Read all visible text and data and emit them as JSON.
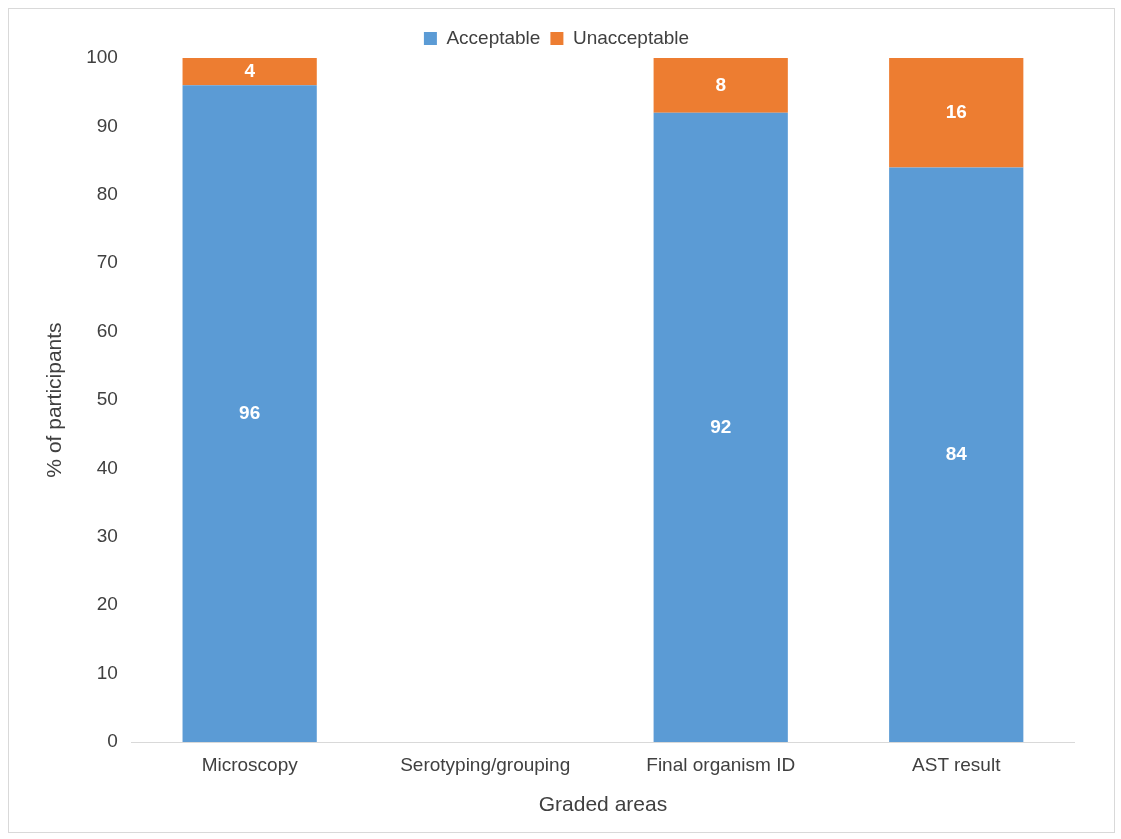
{
  "chart_data": {
    "type": "bar",
    "stacked": true,
    "xlabel": "Graded areas",
    "ylabel": "% of participants",
    "categories": [
      "Microscopy",
      "Serotyping/grouping",
      "Final organism ID",
      "AST result"
    ],
    "series": [
      {
        "name": "Acceptable",
        "color": "#5b9bd5",
        "values": [
          96,
          null,
          92,
          84
        ]
      },
      {
        "name": "Unacceptable",
        "color": "#ed7d31",
        "values": [
          4,
          null,
          8,
          16
        ]
      }
    ],
    "ylim": [
      0,
      100
    ],
    "yticks": [
      0,
      10,
      20,
      30,
      40,
      50,
      60,
      70,
      80,
      90,
      100
    ],
    "grid": false,
    "legend": "top",
    "data_labels": true
  }
}
